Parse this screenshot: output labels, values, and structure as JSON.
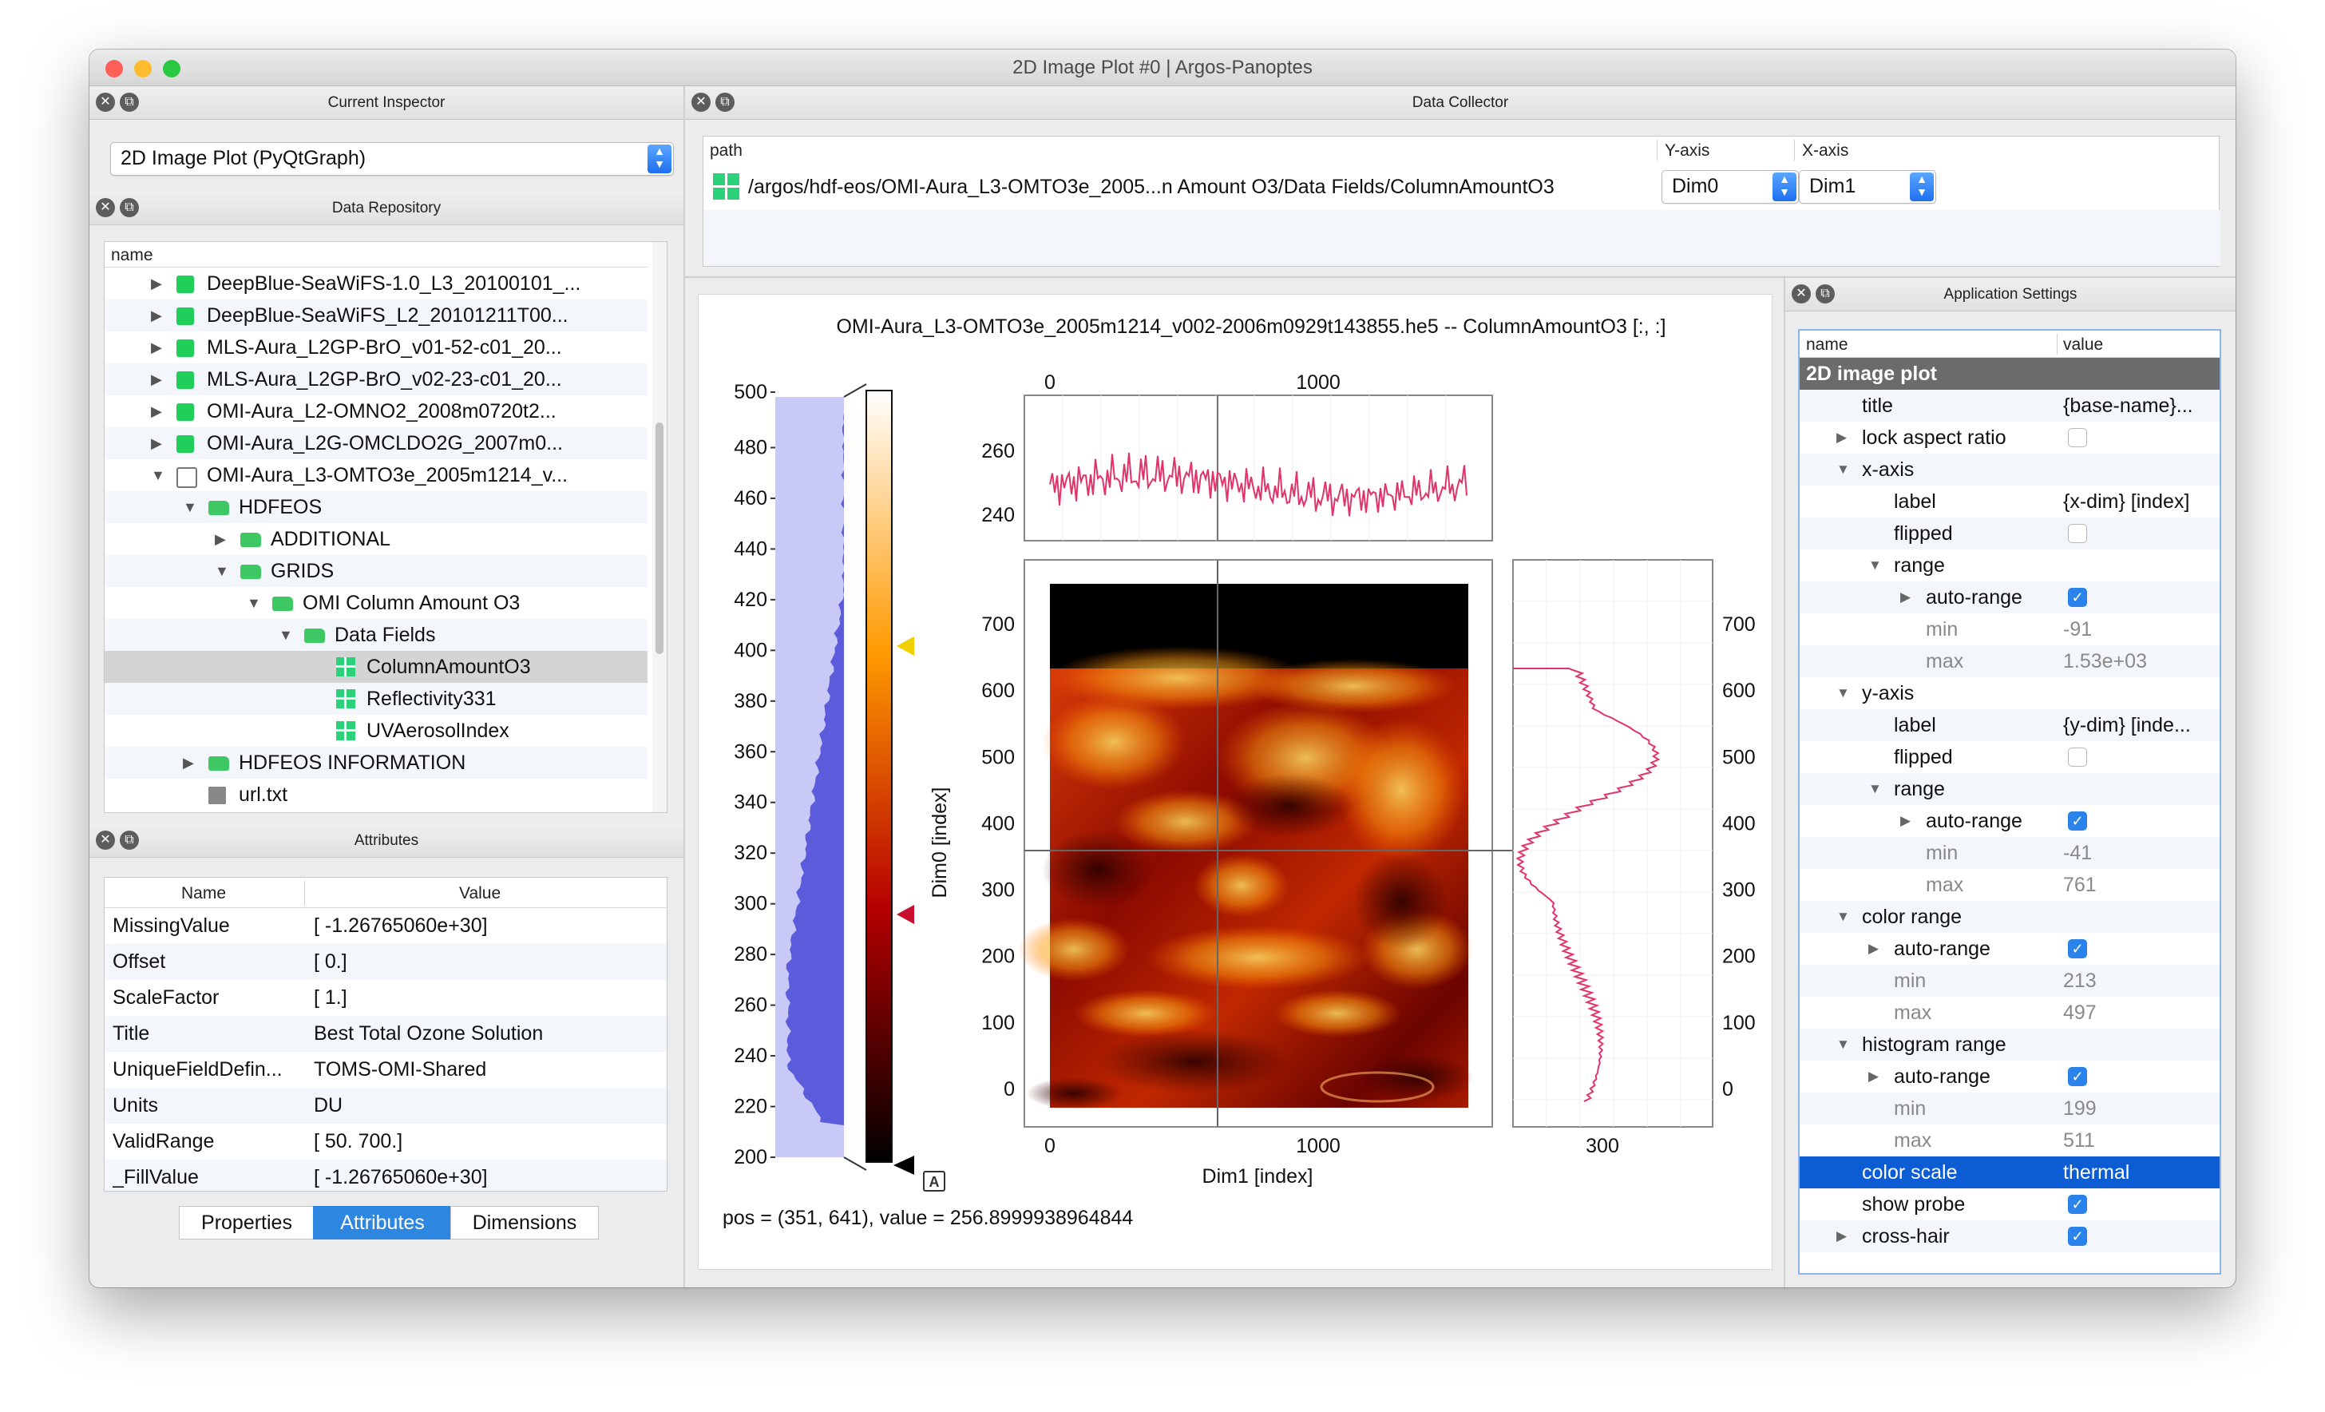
{
  "window": {
    "title": "2D Image Plot #0 | Argos-Panoptes",
    "traffic_colors": [
      "#fe5f57",
      "#febc2e",
      "#28c840"
    ]
  },
  "inspector": {
    "header": "Current Inspector",
    "selected": "2D Image Plot (PyQtGraph)"
  },
  "repository": {
    "header": "Data Repository",
    "column": "name",
    "items": [
      {
        "label": "DeepBlue-SeaWiFS-1.0_L3_20100101_...",
        "depth": 0,
        "arrow": "▶",
        "icon": "file"
      },
      {
        "label": "DeepBlue-SeaWiFS_L2_20101211T00...",
        "depth": 0,
        "arrow": "▶",
        "icon": "file"
      },
      {
        "label": "MLS-Aura_L2GP-BrO_v01-52-c01_20...",
        "depth": 0,
        "arrow": "▶",
        "icon": "file"
      },
      {
        "label": "MLS-Aura_L2GP-BrO_v02-23-c01_20...",
        "depth": 0,
        "arrow": "▶",
        "icon": "file"
      },
      {
        "label": "OMI-Aura_L2-OMNO2_2008m0720t2...",
        "depth": 0,
        "arrow": "▶",
        "icon": "file"
      },
      {
        "label": "OMI-Aura_L2G-OMCLDO2G_2007m0...",
        "depth": 0,
        "arrow": "▶",
        "icon": "file"
      },
      {
        "label": "OMI-Aura_L3-OMTO3e_2005m1214_v...",
        "depth": 0,
        "arrow": "▼",
        "icon": "file-open"
      },
      {
        "label": "HDFEOS",
        "depth": 1,
        "arrow": "▼",
        "icon": "folder"
      },
      {
        "label": "ADDITIONAL",
        "depth": 2,
        "arrow": "▶",
        "icon": "folder"
      },
      {
        "label": "GRIDS",
        "depth": 2,
        "arrow": "▼",
        "icon": "folder"
      },
      {
        "label": "OMI Column Amount O3",
        "depth": 3,
        "arrow": "▼",
        "icon": "folder"
      },
      {
        "label": "Data Fields",
        "depth": 4,
        "arrow": "▼",
        "icon": "folder"
      },
      {
        "label": "ColumnAmountO3",
        "depth": 5,
        "arrow": "",
        "icon": "grid",
        "selected": true
      },
      {
        "label": "Reflectivity331",
        "depth": 5,
        "arrow": "",
        "icon": "grid"
      },
      {
        "label": "UVAerosolIndex",
        "depth": 5,
        "arrow": "",
        "icon": "grid"
      },
      {
        "label": "HDFEOS INFORMATION",
        "depth": 1,
        "arrow": "▶",
        "icon": "folder"
      },
      {
        "label": "url.txt",
        "depth": 1,
        "arrow": "",
        "icon": "text-file"
      }
    ]
  },
  "attributes": {
    "header": "Attributes",
    "col_name": "Name",
    "col_value": "Value",
    "rows": [
      {
        "name": "MissingValue",
        "value": "[ -1.26765060e+30]"
      },
      {
        "name": "Offset",
        "value": "[ 0.]"
      },
      {
        "name": "ScaleFactor",
        "value": "[ 1.]"
      },
      {
        "name": "Title",
        "value": "Best Total Ozone Solution"
      },
      {
        "name": "UniqueFieldDefin...",
        "value": "TOMS-OMI-Shared"
      },
      {
        "name": "Units",
        "value": "DU"
      },
      {
        "name": "ValidRange",
        "value": "[  50.  700.]"
      },
      {
        "name": "_FillValue",
        "value": "[ -1.26765060e+30]"
      }
    ],
    "tabs": [
      "Properties",
      "Attributes",
      "Dimensions"
    ],
    "active_tab": "Attributes"
  },
  "collector": {
    "header": "Data Collector",
    "col_path": "path",
    "col_y": "Y-axis",
    "col_x": "X-axis",
    "path": "/argos/hdf-eos/OMI-Aura_L3-OMTO3e_2005...n Amount O3/Data Fields/ColumnAmountO3",
    "y_value": "Dim0",
    "x_value": "Dim1"
  },
  "plot": {
    "title": "OMI-Aura_L3-OMTO3e_2005m1214_v002-2006m0929t143855.he5 -- ColumnAmountO3 [:, :]",
    "x_label": "Dim1 [index]",
    "y_label": "Dim0 [index]",
    "probe_text": "pos = (351, 641), value = 256.8999938964844",
    "hist_ticks": [
      "500",
      "480",
      "460",
      "440",
      "420",
      "400",
      "380",
      "360",
      "340",
      "320",
      "300",
      "280",
      "260",
      "240",
      "220",
      "200"
    ],
    "image_y_ticks": [
      "700",
      "600",
      "500",
      "400",
      "300",
      "200",
      "100",
      "0"
    ],
    "image_x_ticks": [
      "0",
      "1000"
    ],
    "hprofile_y_ticks": [
      "260",
      "240"
    ],
    "hprofile_x_ticks": [
      "0",
      "1000"
    ],
    "vprofile_x_tick": "300",
    "autoscale_glyph": "A",
    "colors": {
      "fill_black": "#000000",
      "profile_line": "#e0336a",
      "histogram": "#5b5bdc",
      "marker_top": "#f0d000",
      "marker_bottom": "#c8102e"
    }
  },
  "settings": {
    "header": "Application Settings",
    "col_name": "name",
    "col_value": "value",
    "rows": [
      {
        "label": "2D image plot",
        "value": "",
        "depth": 0,
        "type": "group"
      },
      {
        "label": "title",
        "value": "{base-name}...",
        "depth": 1
      },
      {
        "label": "lock aspect ratio",
        "value": "",
        "depth": 1,
        "arrow": "▶",
        "check": "off"
      },
      {
        "label": "x-axis",
        "value": "",
        "depth": 1,
        "arrow": "▼"
      },
      {
        "label": "label",
        "value": "{x-dim} [index]",
        "depth": 2
      },
      {
        "label": "flipped",
        "value": "",
        "depth": 2,
        "check": "off"
      },
      {
        "label": "range",
        "value": "",
        "depth": 2,
        "arrow": "▼"
      },
      {
        "label": "auto-range",
        "value": "",
        "depth": 3,
        "arrow": "▶",
        "check": "on"
      },
      {
        "label": "min",
        "value": "-91",
        "depth": 3,
        "grey": true
      },
      {
        "label": "max",
        "value": "1.53e+03",
        "depth": 3,
        "grey": true
      },
      {
        "label": "y-axis",
        "value": "",
        "depth": 1,
        "arrow": "▼"
      },
      {
        "label": "label",
        "value": "{y-dim} [inde...",
        "depth": 2
      },
      {
        "label": "flipped",
        "value": "",
        "depth": 2,
        "check": "off"
      },
      {
        "label": "range",
        "value": "",
        "depth": 2,
        "arrow": "▼"
      },
      {
        "label": "auto-range",
        "value": "",
        "depth": 3,
        "arrow": "▶",
        "check": "on"
      },
      {
        "label": "min",
        "value": "-41",
        "depth": 3,
        "grey": true
      },
      {
        "label": "max",
        "value": "761",
        "depth": 3,
        "grey": true
      },
      {
        "label": "color range",
        "value": "",
        "depth": 1,
        "arrow": "▼"
      },
      {
        "label": "auto-range",
        "value": "",
        "depth": 2,
        "arrow": "▶",
        "check": "on"
      },
      {
        "label": "min",
        "value": "213",
        "depth": 2,
        "grey": true
      },
      {
        "label": "max",
        "value": "497",
        "depth": 2,
        "grey": true
      },
      {
        "label": "histogram range",
        "value": "",
        "depth": 1,
        "arrow": "▼"
      },
      {
        "label": "auto-range",
        "value": "",
        "depth": 2,
        "arrow": "▶",
        "check": "on"
      },
      {
        "label": "min",
        "value": "199",
        "depth": 2,
        "grey": true
      },
      {
        "label": "max",
        "value": "511",
        "depth": 2,
        "grey": true
      },
      {
        "label": "color scale",
        "value": "thermal",
        "depth": 1,
        "highlight": true
      },
      {
        "label": "show probe",
        "value": "",
        "depth": 1,
        "check": "on"
      },
      {
        "label": "cross-hair",
        "value": "",
        "depth": 1,
        "arrow": "▶",
        "check": "on"
      }
    ]
  }
}
